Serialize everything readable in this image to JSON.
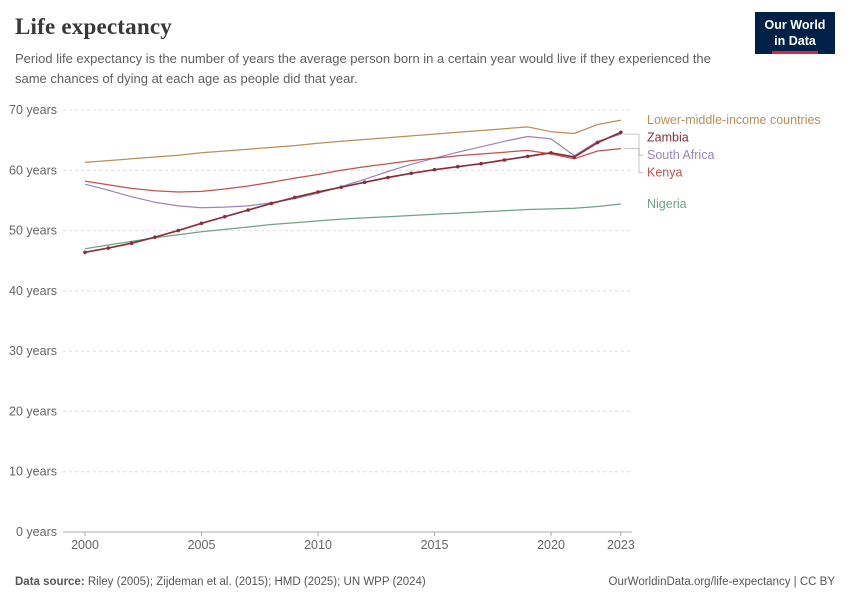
{
  "header": {
    "title": "Life expectancy",
    "subtitle": "Period life expectancy is the number of years the average person born in a certain year would live if they experienced the same chances of dying at each age as people did that year.",
    "logo": {
      "line1": "Our World",
      "line2": "in Data",
      "bg": "#002147",
      "accent": "#d7263d"
    }
  },
  "chart_data": {
    "type": "line",
    "title": "Life expectancy",
    "ylabel": "years",
    "ylim": [
      0,
      70
    ],
    "grid": "dashed horizontal",
    "legend_position": "right-end-labels",
    "x": [
      2000,
      2001,
      2002,
      2003,
      2004,
      2005,
      2006,
      2007,
      2008,
      2009,
      2010,
      2011,
      2012,
      2013,
      2014,
      2015,
      2016,
      2017,
      2018,
      2019,
      2020,
      2021,
      2022,
      2023
    ],
    "x_ticks": [
      2000,
      2005,
      2010,
      2015,
      2020,
      2023
    ],
    "y_ticks": [
      {
        "value": 0,
        "label": "0 years"
      },
      {
        "value": 10,
        "label": "10 years"
      },
      {
        "value": 20,
        "label": "20 years"
      },
      {
        "value": 30,
        "label": "30 years"
      },
      {
        "value": 40,
        "label": "40 years"
      },
      {
        "value": 50,
        "label": "50 years"
      },
      {
        "value": 60,
        "label": "60 years"
      },
      {
        "value": 70,
        "label": "70 years"
      }
    ],
    "series": [
      {
        "name": "Lower-middle-income countries",
        "color": "#BC8E5A",
        "markers": false,
        "values": [
          61.3,
          61.6,
          61.9,
          62.2,
          62.5,
          62.9,
          63.2,
          63.5,
          63.8,
          64.1,
          64.5,
          64.8,
          65.1,
          65.4,
          65.7,
          66.0,
          66.3,
          66.6,
          66.9,
          67.2,
          66.4,
          66.1,
          67.6,
          68.3
        ]
      },
      {
        "name": "Zambia",
        "color": "#883039",
        "markers": true,
        "values": [
          46.4,
          47.1,
          47.9,
          48.9,
          50.0,
          51.2,
          52.3,
          53.4,
          54.5,
          55.5,
          56.4,
          57.2,
          58.0,
          58.8,
          59.5,
          60.1,
          60.6,
          61.1,
          61.7,
          62.3,
          62.9,
          62.2,
          64.6,
          66.3
        ]
      },
      {
        "name": "South Africa",
        "color": "#9A84BE",
        "markers": false,
        "values": [
          57.7,
          56.7,
          55.6,
          54.7,
          54.1,
          53.8,
          53.9,
          54.1,
          54.6,
          55.3,
          56.2,
          57.3,
          58.5,
          59.8,
          61.0,
          62.0,
          63.0,
          63.9,
          64.8,
          65.6,
          65.2,
          62.4,
          64.8,
          66.0
        ]
      },
      {
        "name": "Kenya",
        "color": "#C4524B",
        "markers": false,
        "values": [
          58.2,
          57.6,
          57.0,
          56.6,
          56.4,
          56.5,
          56.9,
          57.4,
          58.0,
          58.7,
          59.3,
          60.0,
          60.6,
          61.1,
          61.6,
          62.0,
          62.4,
          62.7,
          63.0,
          63.3,
          62.7,
          61.9,
          63.2,
          63.6
        ]
      },
      {
        "name": "Nigeria",
        "color": "#6FA287",
        "markers": false,
        "values": [
          47.0,
          47.6,
          48.2,
          48.8,
          49.3,
          49.8,
          50.2,
          50.6,
          51.0,
          51.3,
          51.6,
          51.9,
          52.1,
          52.3,
          52.5,
          52.7,
          52.9,
          53.1,
          53.3,
          53.5,
          53.6,
          53.7,
          54.0,
          54.4
        ]
      }
    ]
  },
  "footer": {
    "source_label": "Data source:",
    "source_text": " Riley (2005); Zijdeman et al. (2015); HMD (2025); UN WPP (2024)",
    "rights": "OurWorldinData.org/life-expectancy | CC BY"
  }
}
